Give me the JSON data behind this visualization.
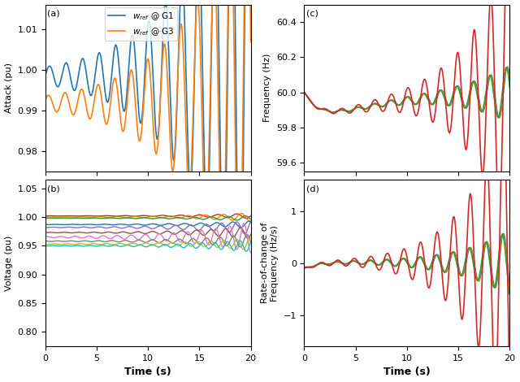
{
  "t_max": 20,
  "dt": 0.02,
  "panel_a": {
    "label": "(a)",
    "ylabel": "Attack (pu)",
    "ylim": [
      0.975,
      1.016
    ],
    "yticks": [
      0.98,
      0.99,
      1.0,
      1.01
    ],
    "g1_color": "#1f77b4",
    "g3_color": "#ff7f0e",
    "g1_label": "$w_{ref}$ @ G1",
    "g3_label": "$w_{ref}$ @ G3"
  },
  "panel_b": {
    "label": "(b)",
    "ylabel": "Voltage (pu)",
    "xlabel": "Time (s)",
    "ylim": [
      0.775,
      1.065
    ],
    "yticks": [
      0.8,
      0.85,
      0.9,
      0.95,
      1.0,
      1.05
    ],
    "colors": [
      "#d62728",
      "#ff7f0e",
      "#2ca02c",
      "#1f77b4",
      "#9467bd",
      "#8c564b",
      "#e377c2",
      "#7f7f7f",
      "#bcbd22",
      "#17becf"
    ],
    "bases": [
      1.002,
      1.0,
      0.998,
      0.987,
      0.982,
      0.973,
      0.965,
      0.958,
      0.953,
      0.95
    ],
    "amp_scales": [
      0.003,
      0.005,
      0.003,
      0.004,
      0.008,
      0.007,
      0.018,
      0.008,
      0.007,
      0.007
    ]
  },
  "panel_c": {
    "label": "(c)",
    "ylabel": "Frequency (Hz)",
    "ylim": [
      59.55,
      60.5
    ],
    "yticks": [
      59.6,
      59.8,
      60.0,
      60.2,
      60.4
    ],
    "colors": [
      "#1f77b4",
      "#ff7f0e",
      "#2ca02c",
      "#d62728"
    ]
  },
  "panel_d": {
    "label": "(d)",
    "ylabel": "Rate-of-change of\nFrequency (Hz/s)",
    "xlabel": "Time (s)",
    "ylim": [
      -1.6,
      1.6
    ],
    "yticks": [
      -1,
      0,
      1
    ],
    "colors": [
      "#1f77b4",
      "#ff7f0e",
      "#2ca02c",
      "#d62728"
    ]
  }
}
